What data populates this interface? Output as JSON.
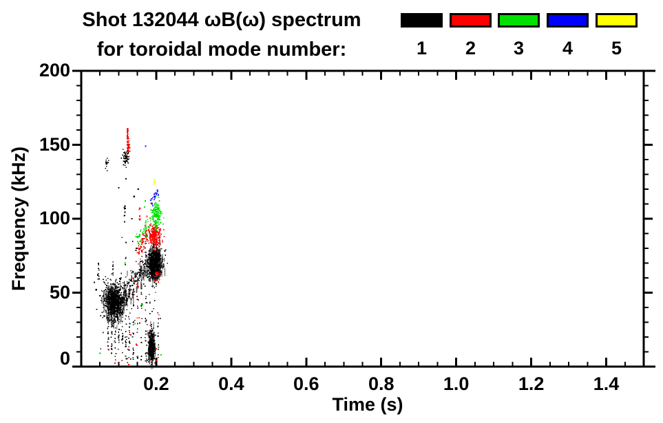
{
  "page": {
    "background": "#FFFFFF"
  },
  "chart_data": {
    "type": "scatter",
    "title": "Shot 132044 ωB(ω) spectrum",
    "subtitle": "for toroidal mode number:",
    "xlabel": "Time (s)",
    "ylabel": "Frequency (kHz)",
    "xlim": [
      0,
      1.53
    ],
    "box_xmax": 1.5,
    "ylim": [
      0,
      200
    ],
    "grid": false,
    "x_major_ticks": [
      0,
      0.2,
      0.4,
      0.6,
      0.8,
      1.0,
      1.2,
      1.4
    ],
    "x_tick_labels": [
      "0.2",
      "0.4",
      "0.6",
      "0.8",
      "1.0",
      "1.2",
      "1.4"
    ],
    "x_labeled_ticks": [
      0.2,
      0.4,
      0.6,
      0.8,
      1.0,
      1.2,
      1.4
    ],
    "x_minor_step": 0.05,
    "y_major_ticks": [
      0,
      50,
      100,
      150,
      200
    ],
    "y_tick_labels": [
      "0",
      "50",
      "100",
      "150",
      "200"
    ],
    "y_minor_step": 10,
    "legend": {
      "position": "top-right",
      "title": "toroidal mode number",
      "items": [
        {
          "label": "1",
          "color": "#000000"
        },
        {
          "label": "2",
          "color": "#FF0000"
        },
        {
          "label": "3",
          "color": "#00E000"
        },
        {
          "label": "4",
          "color": "#0000FF"
        },
        {
          "label": "5",
          "color": "#FFFF00"
        }
      ]
    },
    "units": {
      "time": "s",
      "frequency": "kHz"
    },
    "series": [
      {
        "name": "n=1",
        "mode": 1,
        "color": "#000000",
        "clusters": [
          {
            "type": "blob",
            "t": 0.068,
            "f": 137,
            "st": 0.0028,
            "sf": 2.5,
            "n": 14
          },
          {
            "type": "blob",
            "t": 0.121,
            "f": 140.5,
            "st": 0.004,
            "sf": 3.2,
            "n": 55
          },
          {
            "type": "vstreak",
            "t": 0.116,
            "fmin": 93,
            "fmax": 109,
            "n": 9
          },
          {
            "type": "specks",
            "pts": [
              [
                0.119,
                127
              ],
              [
                0.141,
                115
              ],
              [
                0.117,
                107
              ],
              [
                0.135,
                100
              ],
              [
                0.152,
                120
              ],
              [
                0.1,
                121
              ]
            ]
          },
          {
            "type": "band",
            "t1": 0.11,
            "f1": 46,
            "t2": 0.208,
            "f2": 79,
            "sf": 5.5,
            "n": 280,
            "streaky": true
          },
          {
            "type": "blob",
            "t": 0.197,
            "f": 70,
            "st": 0.01,
            "sf": 5.5,
            "n": 620,
            "streaky": true
          },
          {
            "type": "blob",
            "t": 0.088,
            "f": 44,
            "st": 0.013,
            "sf": 6.0,
            "n": 800,
            "streaky": true
          },
          {
            "type": "blob",
            "t": 0.187,
            "f": 14,
            "st": 0.005,
            "sf": 5.5,
            "n": 360,
            "streaky": true
          },
          {
            "type": "vstreak",
            "t": 0.046,
            "fmin": 56,
            "fmax": 70,
            "n": 10
          },
          {
            "type": "vstreak",
            "t": 0.085,
            "fmin": 61,
            "fmax": 71,
            "n": 9
          },
          {
            "type": "specks",
            "pts": [
              [
                0.04,
                52
              ],
              [
                0.05,
                48
              ],
              [
                0.044,
                62
              ],
              [
                0.035,
                57
              ]
            ]
          },
          {
            "type": "vstreak",
            "t": 0.072,
            "fmin": 8,
            "fmax": 34,
            "n": 12
          },
          {
            "type": "vstreak",
            "t": 0.081,
            "fmin": 5,
            "fmax": 30,
            "n": 12
          },
          {
            "type": "vstreak",
            "t": 0.091,
            "fmin": 3,
            "fmax": 32,
            "n": 13
          },
          {
            "type": "vstreak",
            "t": 0.1,
            "fmin": 6,
            "fmax": 35,
            "n": 12
          },
          {
            "type": "vstreak",
            "t": 0.11,
            "fmin": 2,
            "fmax": 38,
            "n": 14
          },
          {
            "type": "vstreak",
            "t": 0.119,
            "fmin": 4,
            "fmax": 40,
            "n": 13
          },
          {
            "type": "vstreak",
            "t": 0.128,
            "fmin": 2,
            "fmax": 42,
            "n": 14
          },
          {
            "type": "vstreak",
            "t": 0.139,
            "fmin": 3,
            "fmax": 45,
            "n": 12
          },
          {
            "type": "vstreak",
            "t": 0.15,
            "fmin": 5,
            "fmax": 50,
            "n": 12
          },
          {
            "type": "vstreak",
            "t": 0.161,
            "fmin": 2,
            "fmax": 52,
            "n": 12
          },
          {
            "type": "vstreak",
            "t": 0.172,
            "fmin": 4,
            "fmax": 48,
            "n": 12
          },
          {
            "type": "vstreak",
            "t": 0.205,
            "fmin": 3,
            "fmax": 40,
            "n": 12
          },
          {
            "type": "uniform",
            "tmin": 0.05,
            "tmax": 0.215,
            "fmin": 2,
            "fmax": 60,
            "n": 40
          },
          {
            "type": "uniform",
            "tmin": 0.1,
            "tmax": 0.215,
            "fmin": 60,
            "fmax": 92,
            "n": 18
          }
        ]
      },
      {
        "name": "n=2",
        "mode": 2,
        "color": "#FF0000",
        "clusters": [
          {
            "type": "vstreak",
            "t": 0.1235,
            "fmin": 147,
            "fmax": 161,
            "n": 45
          },
          {
            "type": "blob",
            "t": 0.127,
            "f": 148,
            "st": 0.0018,
            "sf": 2.2,
            "n": 28
          },
          {
            "type": "vstreak",
            "t": 0.156,
            "fmin": 98,
            "fmax": 107.5,
            "n": 9
          },
          {
            "type": "band",
            "t1": 0.152,
            "f1": 77,
            "t2": 0.176,
            "f2": 90,
            "sf": 3,
            "n": 65
          },
          {
            "type": "blob",
            "t": 0.197,
            "f": 88.5,
            "st": 0.0085,
            "sf": 3.6,
            "n": 250
          },
          {
            "type": "blob",
            "t": 0.204,
            "f": 62,
            "st": 0.0028,
            "sf": 2.2,
            "n": 26
          },
          {
            "type": "specks",
            "pts": [
              [
                0.073,
                11.6
              ],
              [
                0.099,
                2.3
              ],
              [
                0.125,
                11.6
              ],
              [
                0.132,
                21.4
              ],
              [
                0.156,
                29.4
              ],
              [
                0.178,
                22.4
              ],
              [
                0.2,
                12.1
              ],
              [
                0.2,
                4.2
              ],
              [
                0.127,
                1.4
              ],
              [
                0.09,
                2.3
              ],
              [
                0.147,
                15
              ],
              [
                0.185,
                28
              ],
              [
                0.156,
                107
              ]
            ]
          },
          {
            "type": "uniform",
            "tmin": 0.11,
            "tmax": 0.21,
            "fmin": 30,
            "fmax": 72,
            "n": 12
          }
        ]
      },
      {
        "name": "n=3",
        "mode": 3,
        "color": "#00E000",
        "clusters": [
          {
            "type": "band",
            "t1": 0.148,
            "f1": 86,
            "t2": 0.186,
            "f2": 98,
            "sf": 2.5,
            "n": 45
          },
          {
            "type": "blob",
            "t": 0.2,
            "f": 103,
            "st": 0.0065,
            "sf": 4.5,
            "n": 160
          },
          {
            "type": "specks",
            "pts": [
              [
                0.171,
                112
              ],
              [
                0.169,
                108
              ],
              [
                0.206,
                13
              ],
              [
                0.213,
                8
              ],
              [
                0.117,
                70
              ],
              [
                0.143,
                29
              ],
              [
                0.163,
                42
              ],
              [
                0.05,
                9
              ]
            ]
          }
        ]
      },
      {
        "name": "n=4",
        "mode": 4,
        "color": "#0000FF",
        "clusters": [
          {
            "type": "band",
            "t1": 0.185,
            "f1": 111,
            "t2": 0.206,
            "f2": 119,
            "sf": 1.4,
            "n": 22
          },
          {
            "type": "specks",
            "pts": [
              [
                0.172,
                149
              ],
              [
                0.189,
                110
              ],
              [
                0.196,
                115
              ]
            ]
          }
        ]
      },
      {
        "name": "n=5",
        "mode": 5,
        "color": "#FFFF00",
        "clusters": [
          {
            "type": "blob",
            "t": 0.195,
            "f": 125.5,
            "st": 0.0017,
            "sf": 1.1,
            "n": 10
          }
        ]
      }
    ]
  }
}
